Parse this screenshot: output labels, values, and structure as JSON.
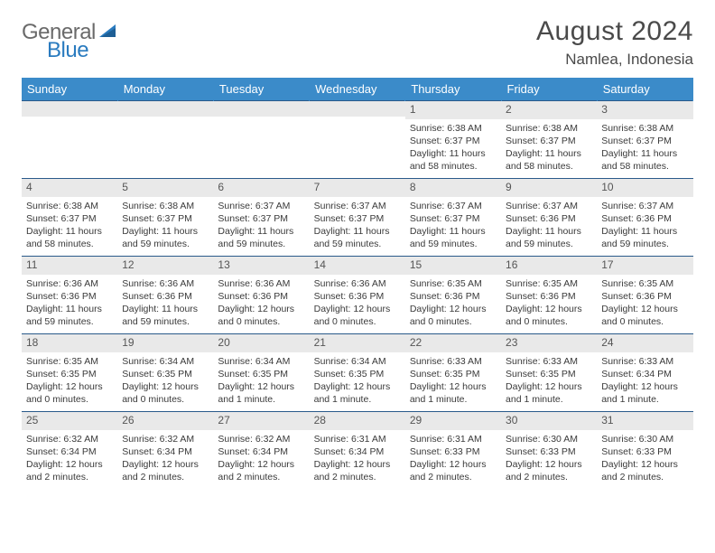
{
  "logo": {
    "text1": "General",
    "text2": "Blue"
  },
  "title": "August 2024",
  "location": "Namlea, Indonesia",
  "colors": {
    "header_bg": "#3b8bc9",
    "header_text": "#ffffff",
    "daynum_bg": "#e9e9e9",
    "cell_border": "#2a5a8a",
    "logo_gray": "#6a6a6a",
    "logo_blue": "#2a7bbf"
  },
  "weekdays": [
    "Sunday",
    "Monday",
    "Tuesday",
    "Wednesday",
    "Thursday",
    "Friday",
    "Saturday"
  ],
  "weeks": [
    [
      {
        "n": "",
        "sr": "",
        "ss": "",
        "dl": ""
      },
      {
        "n": "",
        "sr": "",
        "ss": "",
        "dl": ""
      },
      {
        "n": "",
        "sr": "",
        "ss": "",
        "dl": ""
      },
      {
        "n": "",
        "sr": "",
        "ss": "",
        "dl": ""
      },
      {
        "n": "1",
        "sr": "Sunrise: 6:38 AM",
        "ss": "Sunset: 6:37 PM",
        "dl": "Daylight: 11 hours and 58 minutes."
      },
      {
        "n": "2",
        "sr": "Sunrise: 6:38 AM",
        "ss": "Sunset: 6:37 PM",
        "dl": "Daylight: 11 hours and 58 minutes."
      },
      {
        "n": "3",
        "sr": "Sunrise: 6:38 AM",
        "ss": "Sunset: 6:37 PM",
        "dl": "Daylight: 11 hours and 58 minutes."
      }
    ],
    [
      {
        "n": "4",
        "sr": "Sunrise: 6:38 AM",
        "ss": "Sunset: 6:37 PM",
        "dl": "Daylight: 11 hours and 58 minutes."
      },
      {
        "n": "5",
        "sr": "Sunrise: 6:38 AM",
        "ss": "Sunset: 6:37 PM",
        "dl": "Daylight: 11 hours and 59 minutes."
      },
      {
        "n": "6",
        "sr": "Sunrise: 6:37 AM",
        "ss": "Sunset: 6:37 PM",
        "dl": "Daylight: 11 hours and 59 minutes."
      },
      {
        "n": "7",
        "sr": "Sunrise: 6:37 AM",
        "ss": "Sunset: 6:37 PM",
        "dl": "Daylight: 11 hours and 59 minutes."
      },
      {
        "n": "8",
        "sr": "Sunrise: 6:37 AM",
        "ss": "Sunset: 6:37 PM",
        "dl": "Daylight: 11 hours and 59 minutes."
      },
      {
        "n": "9",
        "sr": "Sunrise: 6:37 AM",
        "ss": "Sunset: 6:36 PM",
        "dl": "Daylight: 11 hours and 59 minutes."
      },
      {
        "n": "10",
        "sr": "Sunrise: 6:37 AM",
        "ss": "Sunset: 6:36 PM",
        "dl": "Daylight: 11 hours and 59 minutes."
      }
    ],
    [
      {
        "n": "11",
        "sr": "Sunrise: 6:36 AM",
        "ss": "Sunset: 6:36 PM",
        "dl": "Daylight: 11 hours and 59 minutes."
      },
      {
        "n": "12",
        "sr": "Sunrise: 6:36 AM",
        "ss": "Sunset: 6:36 PM",
        "dl": "Daylight: 11 hours and 59 minutes."
      },
      {
        "n": "13",
        "sr": "Sunrise: 6:36 AM",
        "ss": "Sunset: 6:36 PM",
        "dl": "Daylight: 12 hours and 0 minutes."
      },
      {
        "n": "14",
        "sr": "Sunrise: 6:36 AM",
        "ss": "Sunset: 6:36 PM",
        "dl": "Daylight: 12 hours and 0 minutes."
      },
      {
        "n": "15",
        "sr": "Sunrise: 6:35 AM",
        "ss": "Sunset: 6:36 PM",
        "dl": "Daylight: 12 hours and 0 minutes."
      },
      {
        "n": "16",
        "sr": "Sunrise: 6:35 AM",
        "ss": "Sunset: 6:36 PM",
        "dl": "Daylight: 12 hours and 0 minutes."
      },
      {
        "n": "17",
        "sr": "Sunrise: 6:35 AM",
        "ss": "Sunset: 6:36 PM",
        "dl": "Daylight: 12 hours and 0 minutes."
      }
    ],
    [
      {
        "n": "18",
        "sr": "Sunrise: 6:35 AM",
        "ss": "Sunset: 6:35 PM",
        "dl": "Daylight: 12 hours and 0 minutes."
      },
      {
        "n": "19",
        "sr": "Sunrise: 6:34 AM",
        "ss": "Sunset: 6:35 PM",
        "dl": "Daylight: 12 hours and 0 minutes."
      },
      {
        "n": "20",
        "sr": "Sunrise: 6:34 AM",
        "ss": "Sunset: 6:35 PM",
        "dl": "Daylight: 12 hours and 1 minute."
      },
      {
        "n": "21",
        "sr": "Sunrise: 6:34 AM",
        "ss": "Sunset: 6:35 PM",
        "dl": "Daylight: 12 hours and 1 minute."
      },
      {
        "n": "22",
        "sr": "Sunrise: 6:33 AM",
        "ss": "Sunset: 6:35 PM",
        "dl": "Daylight: 12 hours and 1 minute."
      },
      {
        "n": "23",
        "sr": "Sunrise: 6:33 AM",
        "ss": "Sunset: 6:35 PM",
        "dl": "Daylight: 12 hours and 1 minute."
      },
      {
        "n": "24",
        "sr": "Sunrise: 6:33 AM",
        "ss": "Sunset: 6:34 PM",
        "dl": "Daylight: 12 hours and 1 minute."
      }
    ],
    [
      {
        "n": "25",
        "sr": "Sunrise: 6:32 AM",
        "ss": "Sunset: 6:34 PM",
        "dl": "Daylight: 12 hours and 2 minutes."
      },
      {
        "n": "26",
        "sr": "Sunrise: 6:32 AM",
        "ss": "Sunset: 6:34 PM",
        "dl": "Daylight: 12 hours and 2 minutes."
      },
      {
        "n": "27",
        "sr": "Sunrise: 6:32 AM",
        "ss": "Sunset: 6:34 PM",
        "dl": "Daylight: 12 hours and 2 minutes."
      },
      {
        "n": "28",
        "sr": "Sunrise: 6:31 AM",
        "ss": "Sunset: 6:34 PM",
        "dl": "Daylight: 12 hours and 2 minutes."
      },
      {
        "n": "29",
        "sr": "Sunrise: 6:31 AM",
        "ss": "Sunset: 6:33 PM",
        "dl": "Daylight: 12 hours and 2 minutes."
      },
      {
        "n": "30",
        "sr": "Sunrise: 6:30 AM",
        "ss": "Sunset: 6:33 PM",
        "dl": "Daylight: 12 hours and 2 minutes."
      },
      {
        "n": "31",
        "sr": "Sunrise: 6:30 AM",
        "ss": "Sunset: 6:33 PM",
        "dl": "Daylight: 12 hours and 2 minutes."
      }
    ]
  ]
}
